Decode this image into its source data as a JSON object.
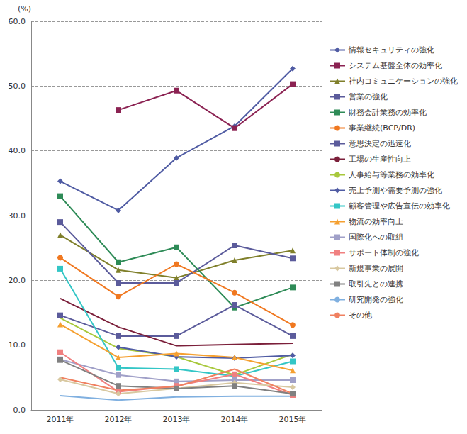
{
  "chart_data": {
    "type": "line",
    "y_label": "(%)",
    "categories": [
      "2011年",
      "2012年",
      "2013年",
      "2014年",
      "2015年"
    ],
    "ylim": [
      0,
      60
    ],
    "yticks": [
      {
        "value": 0,
        "label": "0.0"
      },
      {
        "value": 10,
        "label": "10.0"
      },
      {
        "value": 20,
        "label": "20.0"
      },
      {
        "value": 30,
        "label": "30.0"
      },
      {
        "value": 40,
        "label": "40.0"
      },
      {
        "value": 50,
        "label": "50.0"
      },
      {
        "value": 60,
        "label": "60.0"
      }
    ],
    "grid": true,
    "legend": "right",
    "series": [
      {
        "name": "情報セキュリティの強化",
        "color": "#4f5ba3",
        "marker": "diamond",
        "values": [
          35.3,
          30.8,
          38.9,
          43.8,
          52.7
        ]
      },
      {
        "name": "システム基盤全体の効率化",
        "color": "#8b2252",
        "marker": "square",
        "values": [
          null,
          46.3,
          49.3,
          43.5,
          50.3
        ]
      },
      {
        "name": "社内コミュニケーションの強化",
        "color": "#7f7f2a",
        "marker": "triangle",
        "values": [
          27.0,
          21.6,
          20.4,
          23.1,
          24.6
        ]
      },
      {
        "name": "営業の強化",
        "color": "#5b5b9b",
        "marker": "square",
        "values": [
          29.0,
          19.6,
          19.6,
          25.4,
          23.4
        ]
      },
      {
        "name": "財務会計業務の効率化",
        "color": "#2e8b57",
        "marker": "square",
        "values": [
          33.0,
          22.8,
          25.1,
          15.8,
          18.9
        ]
      },
      {
        "name": "事業継続(BCP/DR)",
        "color": "#f07820",
        "marker": "circle",
        "values": [
          23.5,
          17.5,
          22.5,
          18.1,
          13.1
        ]
      },
      {
        "name": "意思決定の迅速化",
        "color": "#5b5b9b",
        "marker": "square",
        "values": [
          14.6,
          11.4,
          11.4,
          16.2,
          11.4
        ]
      },
      {
        "name": "工場の生産性向上",
        "color": "#7b1f3a",
        "marker": "none",
        "values": [
          17.2,
          12.8,
          9.9,
          10.1,
          10.3
        ]
      },
      {
        "name": "人事給与等業務の効率化",
        "color": "#a8c83c",
        "marker": "none",
        "values": [
          14.2,
          9.5,
          8.2,
          5.4,
          8.6
        ]
      },
      {
        "name": "売上予測や需要予測の強化",
        "color": "#4f5ba3",
        "marker": "diamond",
        "values": [
          null,
          9.7,
          8.2,
          8.0,
          8.4
        ]
      },
      {
        "name": "顧客管理や広告宣伝の効率化",
        "color": "#33c6c6",
        "marker": "square",
        "values": [
          21.8,
          6.5,
          6.3,
          5.2,
          7.5
        ]
      },
      {
        "name": "物流の効率向上",
        "color": "#f5a030",
        "marker": "triangle",
        "values": [
          13.2,
          8.1,
          8.7,
          8.1,
          6.1
        ]
      },
      {
        "name": "国際化への取組",
        "color": "#a0a0c8",
        "marker": "square",
        "values": [
          7.8,
          5.4,
          4.4,
          4.6,
          4.6
        ]
      },
      {
        "name": "サポート体制の強化",
        "color": "#f08080",
        "marker": "square",
        "values": [
          8.9,
          2.8,
          3.7,
          5.5,
          2.3
        ]
      },
      {
        "name": "新規事業の展開",
        "color": "#d8c8a0",
        "marker": "diamond",
        "values": [
          4.7,
          2.5,
          3.3,
          4.2,
          3.5
        ]
      },
      {
        "name": "取引先との連携",
        "color": "#808080",
        "marker": "square",
        "values": [
          7.7,
          3.7,
          3.3,
          3.7,
          2.5
        ]
      },
      {
        "name": "研究開発の強化",
        "color": "#80b0e0",
        "marker": "none",
        "values": [
          2.2,
          1.5,
          2.0,
          2.1,
          2.1
        ]
      },
      {
        "name": "その他",
        "color": "#f08060",
        "marker": "none",
        "values": [
          5.0,
          3.0,
          3.6,
          6.3,
          2.5
        ]
      }
    ]
  }
}
